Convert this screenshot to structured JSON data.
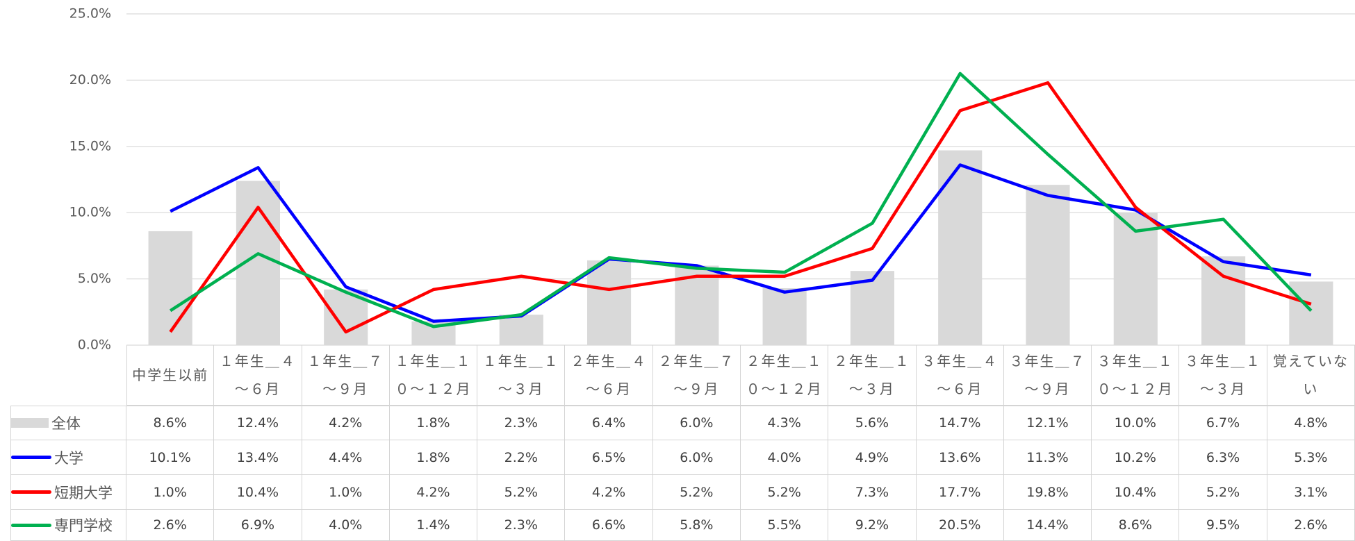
{
  "chart_data": {
    "type": "bar-line",
    "categories": [
      "中学生以前",
      "１年生＿４～６月",
      "１年生＿７～９月",
      "１年生＿１０～１２月",
      "１年生＿１～３月",
      "２年生＿４～６月",
      "２年生＿７～９月",
      "２年生＿１０～１２月",
      "２年生＿１～３月",
      "３年生＿４～６月",
      "３年生＿７～９月",
      "３年生＿１０～１２月",
      "３年生＿１～３月",
      "覚えていない"
    ],
    "series": [
      {
        "name": "全体",
        "type": "bar",
        "color": "#d9d9d9",
        "values": [
          8.6,
          12.4,
          4.2,
          1.8,
          2.3,
          6.4,
          6.0,
          4.3,
          5.6,
          14.7,
          12.1,
          10.0,
          6.7,
          4.8
        ],
        "value_labels": [
          "8.6%",
          "12.4%",
          "4.2%",
          "1.8%",
          "2.3%",
          "6.4%",
          "6.0%",
          "4.3%",
          "5.6%",
          "14.7%",
          "12.1%",
          "10.0%",
          "6.7%",
          "4.8%"
        ]
      },
      {
        "name": "大学",
        "type": "line",
        "color": "#0000ff",
        "values": [
          10.1,
          13.4,
          4.4,
          1.8,
          2.2,
          6.5,
          6.0,
          4.0,
          4.9,
          13.6,
          11.3,
          10.2,
          6.3,
          5.3
        ],
        "value_labels": [
          "10.1%",
          "13.4%",
          "4.4%",
          "1.8%",
          "2.2%",
          "6.5%",
          "6.0%",
          "4.0%",
          "4.9%",
          "13.6%",
          "11.3%",
          "10.2%",
          "6.3%",
          "5.3%"
        ]
      },
      {
        "name": "短期大学",
        "type": "line",
        "color": "#ff0000",
        "values": [
          1.0,
          10.4,
          1.0,
          4.2,
          5.2,
          4.2,
          5.2,
          5.2,
          7.3,
          17.7,
          19.8,
          10.4,
          5.2,
          3.1
        ],
        "value_labels": [
          "1.0%",
          "10.4%",
          "1.0%",
          "4.2%",
          "5.2%",
          "4.2%",
          "5.2%",
          "5.2%",
          "7.3%",
          "17.7%",
          "19.8%",
          "10.4%",
          "5.2%",
          "3.1%"
        ]
      },
      {
        "name": "専門学校",
        "type": "line",
        "color": "#00b050",
        "values": [
          2.6,
          6.9,
          4.0,
          1.4,
          2.3,
          6.6,
          5.8,
          5.5,
          9.2,
          20.5,
          14.4,
          8.6,
          9.5,
          2.6
        ],
        "value_labels": [
          "2.6%",
          "6.9%",
          "4.0%",
          "1.4%",
          "2.3%",
          "6.6%",
          "5.8%",
          "5.5%",
          "9.2%",
          "20.5%",
          "14.4%",
          "8.6%",
          "9.5%",
          "2.6%"
        ]
      }
    ],
    "ylim": [
      0,
      25
    ],
    "yticks": [
      {
        "value": 0,
        "label": "0.0%"
      },
      {
        "value": 5,
        "label": "5.0%"
      },
      {
        "value": 10,
        "label": "10.0%"
      },
      {
        "value": 15,
        "label": "15.0%"
      },
      {
        "value": 20,
        "label": "20.0%"
      },
      {
        "value": 25,
        "label": "25.0%"
      }
    ],
    "grid": true
  }
}
